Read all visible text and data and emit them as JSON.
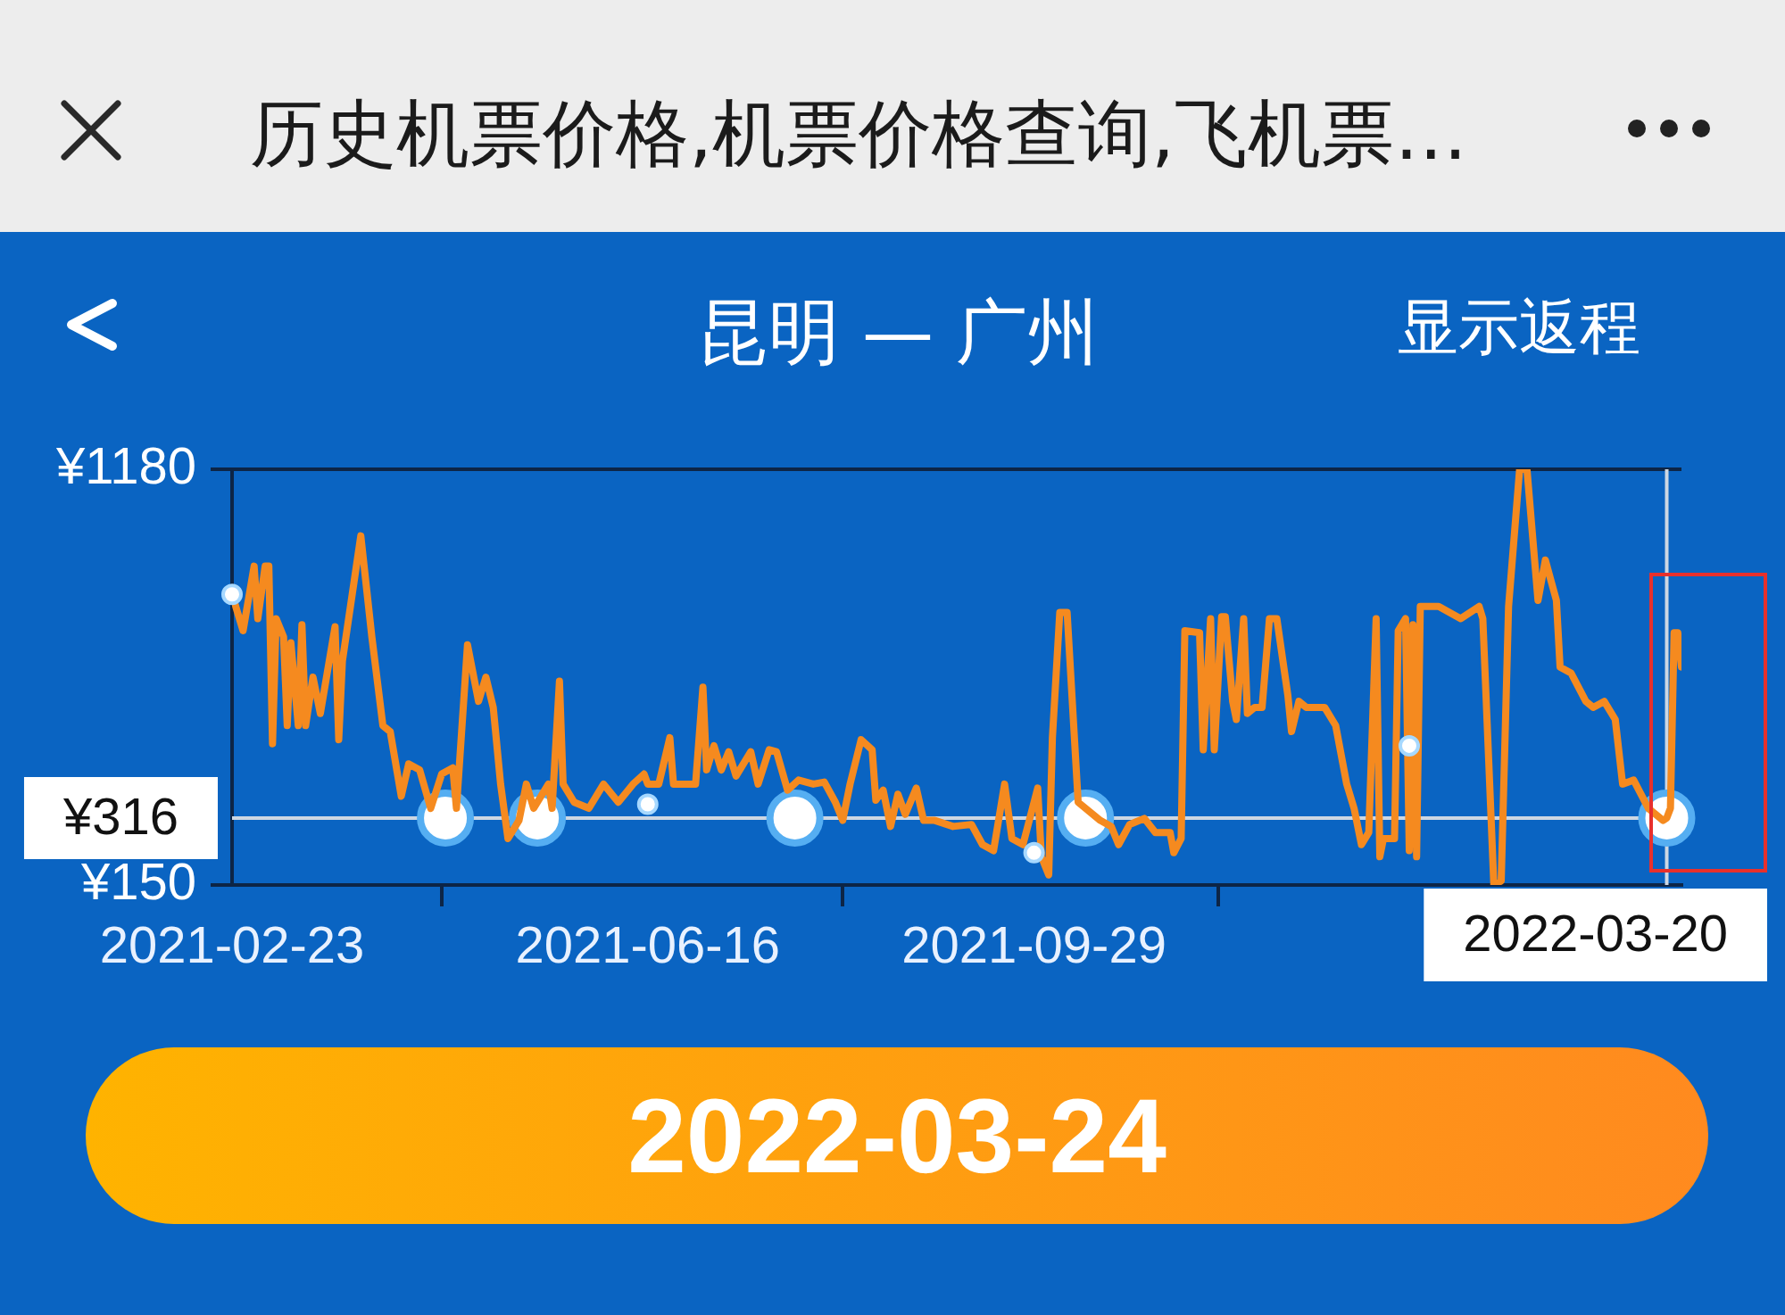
{
  "chart_data": {
    "type": "line",
    "title": "昆明 — 广州",
    "annotations": [
      "历史机票价格,机票价格查询,飞机票…",
      "显示返程",
      "2022-03-24"
    ],
    "xlim": [
      "2021-02-23",
      "2022-03-24"
    ],
    "xticks": [
      "2021-02-23",
      {
        "value": "2021-04-21",
        "label": null
      },
      "2021-06-16",
      {
        "value": "2021-08-08",
        "label": null
      },
      "2021-09-29",
      {
        "value": "2021-11-18",
        "label": null
      }
    ],
    "ylim": [
      150,
      1180
    ],
    "yticks": [
      {
        "value": 150,
        "label": "¥150"
      },
      {
        "value": 1180,
        "label": "¥1180"
      }
    ],
    "ref_lines": [
      {
        "axis": "y",
        "value": 316,
        "label": "¥316",
        "color": "#cdd7e3"
      },
      {
        "axis": "x",
        "value": "2022-03-20",
        "label": "2022-03-20",
        "color": "#cdd7e3"
      }
    ],
    "series": [
      {
        "color": "#f58a1f",
        "marker": "none",
        "x": [
          "2021-02-23",
          "2021-02-26",
          "2021-03-01",
          "2021-03-02",
          "2021-03-04",
          "2021-03-05",
          "2021-03-06",
          "2021-03-07",
          "2021-03-09",
          "2021-03-10",
          "2021-03-11",
          "2021-03-13",
          "2021-03-14",
          "2021-03-15",
          "2021-03-17",
          "2021-03-19",
          "2021-03-23",
          "2021-03-24",
          "2021-03-25",
          "2021-03-30",
          "2021-04-02",
          "2021-04-05",
          "2021-04-07",
          "2021-04-10",
          "2021-04-12",
          "2021-04-15",
          "2021-04-18",
          "2021-04-21",
          "2021-04-24",
          "2021-04-25",
          "2021-04-28",
          "2021-05-01",
          "2021-05-03",
          "2021-05-05",
          "2021-05-07",
          "2021-05-09",
          "2021-05-12",
          "2021-05-14",
          "2021-05-16",
          "2021-05-20",
          "2021-05-21",
          "2021-05-23",
          "2021-05-24",
          "2021-05-27",
          "2021-05-31",
          "2021-06-04",
          "2021-06-08",
          "2021-06-12",
          "2021-06-15",
          "2021-06-16",
          "2021-06-19",
          "2021-06-22",
          "2021-06-23",
          "2021-06-29",
          "2021-07-01",
          "2021-07-02",
          "2021-07-04",
          "2021-07-06",
          "2021-07-08",
          "2021-07-10",
          "2021-07-14",
          "2021-07-16",
          "2021-07-19",
          "2021-07-21",
          "2021-07-24",
          "2021-07-27",
          "2021-07-31",
          "2021-08-03",
          "2021-08-06",
          "2021-08-08",
          "2021-08-10",
          "2021-08-13",
          "2021-08-16",
          "2021-08-17",
          "2021-08-19",
          "2021-08-21",
          "2021-08-23",
          "2021-08-25",
          "2021-08-28",
          "2021-08-30",
          "2021-09-02",
          "2021-09-07",
          "2021-09-12",
          "2021-09-15",
          "2021-09-18",
          "2021-09-21",
          "2021-09-23",
          "2021-09-26",
          "2021-09-30",
          "2021-10-01",
          "2021-10-03",
          "2021-10-04",
          "2021-10-06",
          "2021-10-08",
          "2021-10-11",
          "2021-10-17",
          "2021-10-20",
          "2021-10-22",
          "2021-10-25",
          "2021-10-29",
          "2021-11-01",
          "2021-11-05",
          "2021-11-06",
          "2021-11-08",
          "2021-11-09",
          "2021-11-13",
          "2021-11-14",
          "2021-11-16",
          "2021-11-17",
          "2021-11-19",
          "2021-11-20",
          "2021-11-22",
          "2021-11-23",
          "2021-11-25",
          "2021-11-26",
          "2021-11-28",
          "2021-11-30",
          "2021-12-02",
          "2021-12-04",
          "2021-12-07",
          "2021-12-08",
          "2021-12-10",
          "2021-12-12",
          "2021-12-17",
          "2021-12-20",
          "2021-12-23",
          "2021-12-25",
          "2021-12-27",
          "2021-12-29",
          "2021-12-31",
          "2022-01-01",
          "2022-01-02",
          "2022-01-05",
          "2022-01-06",
          "2022-01-08",
          "2022-01-09",
          "2022-01-10",
          "2022-01-11",
          "2022-01-12",
          "2022-01-17",
          "2022-01-23",
          "2022-01-28",
          "2022-01-29",
          "2022-02-01",
          "2022-02-03",
          "2022-02-05",
          "2022-02-08",
          "2022-02-10",
          "2022-02-13",
          "2022-02-15",
          "2022-02-18",
          "2022-02-19",
          "2022-02-22",
          "2022-02-26",
          "2022-02-28",
          "2022-03-03",
          "2022-03-06",
          "2022-03-08",
          "2022-03-11",
          "2022-03-15",
          "2022-03-19",
          "2022-03-20",
          "2022-03-21",
          "2022-03-22",
          "2022-03-23",
          "2022-03-24"
        ],
        "values": [
          870,
          780,
          940,
          810,
          940,
          940,
          500,
          810,
          765,
          545,
          750,
          545,
          795,
          545,
          665,
          575,
          790,
          510,
          705,
          1015,
          765,
          545,
          530,
          370,
          450,
          435,
          340,
          425,
          440,
          340,
          745,
          605,
          665,
          590,
          400,
          265,
          310,
          400,
          340,
          400,
          340,
          655,
          400,
          355,
          340,
          400,
          355,
          400,
          425,
          400,
          400,
          515,
          400,
          400,
          640,
          435,
          495,
          435,
          480,
          420,
          480,
          400,
          485,
          480,
          385,
          410,
          400,
          405,
          355,
          310,
          400,
          510,
          485,
          360,
          385,
          295,
          375,
          325,
          390,
          310,
          310,
          295,
          300,
          250,
          235,
          400,
          265,
          250,
          390,
          220,
          175,
          515,
          825,
          825,
          355,
          310,
          295,
          250,
          300,
          315,
          280,
          280,
          230,
          265,
          780,
          775,
          485,
          810,
          485,
          815,
          815,
          605,
          560,
          810,
          575,
          590,
          590,
          810,
          810,
          620,
          530,
          605,
          590,
          590,
          545,
          400,
          340,
          250,
          280,
          810,
          220,
          265,
          265,
          780,
          810,
          235,
          795,
          220,
          840,
          840,
          810,
          840,
          810,
          150,
          160,
          840,
          1180,
          1180,
          855,
          955,
          855,
          690,
          675,
          605,
          590,
          605,
          560,
          400,
          410,
          340,
          310,
          316,
          340,
          775,
          775,
          690
        ]
      },
      {
        "type": "scatter",
        "color": "#ffffff",
        "marker": "circle",
        "x": [
          "2021-02-23",
          "2021-06-16",
          "2021-09-29",
          "2022-01-09"
        ],
        "values": [
          870,
          350,
          230,
          495
        ]
      },
      {
        "type": "scatter",
        "color": "#ffffff",
        "marker": "circle",
        "x": [
          "2021-04-22",
          "2021-05-17",
          "2021-07-26",
          "2021-10-13",
          "2022-03-20"
        ],
        "values": [
          316,
          316,
          316,
          316,
          316
        ]
      }
    ]
  }
}
